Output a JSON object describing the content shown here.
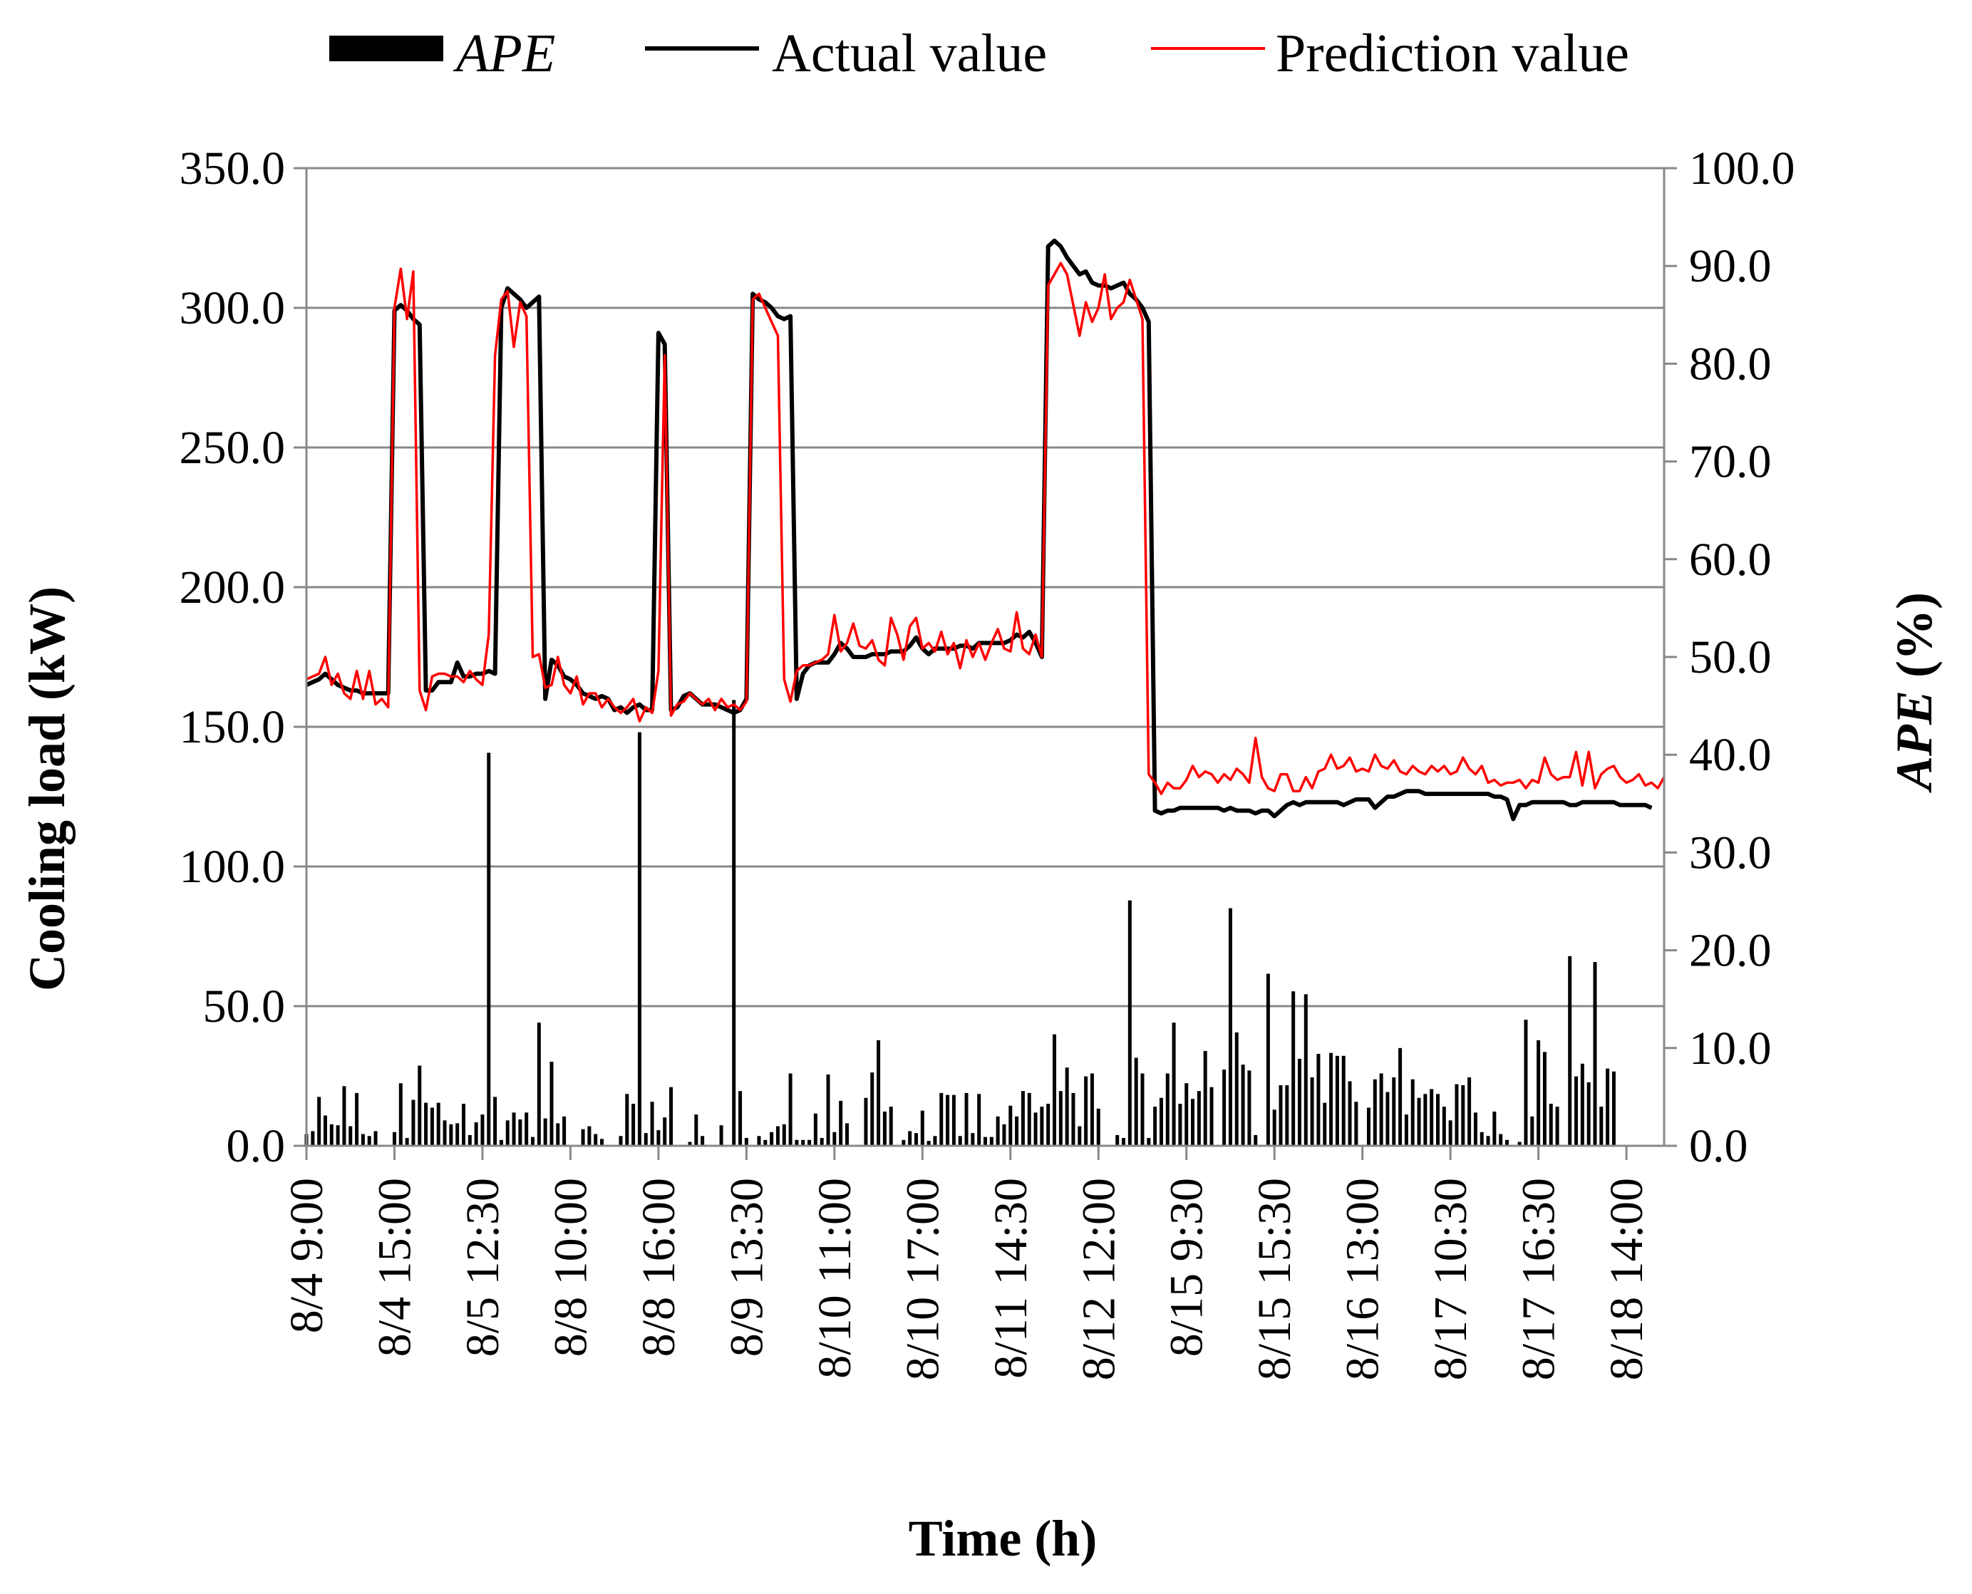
{
  "chart_data": {
    "type": "line",
    "title": "",
    "xlabel": "Time (h)",
    "ylabel_left": "Cooling load (kW)",
    "ylabel_right_italic": "APE",
    "ylabel_right_suffix": " (%)",
    "ylim_left": [
      0,
      350
    ],
    "ylim_right": [
      0,
      100
    ],
    "left_ticks": [
      "0.0",
      "50.0",
      "100.0",
      "150.0",
      "200.0",
      "250.0",
      "300.0",
      "350.0"
    ],
    "right_ticks": [
      "0.0",
      "10.0",
      "20.0",
      "30.0",
      "40.0",
      "50.0",
      "60.0",
      "70.0",
      "80.0",
      "90.0",
      "100.0"
    ],
    "grid": true,
    "n_points": 217,
    "x_tick_labels": [
      {
        "index": 0,
        "label": "8/4 9:00"
      },
      {
        "index": 14,
        "label": "8/4 15:00"
      },
      {
        "index": 28,
        "label": "8/5 12:30"
      },
      {
        "index": 42,
        "label": "8/8 10:00"
      },
      {
        "index": 56,
        "label": "8/8 16:00"
      },
      {
        "index": 70,
        "label": "8/9 13:30"
      },
      {
        "index": 84,
        "label": "8/10 11:00"
      },
      {
        "index": 98,
        "label": "8/10 17:00"
      },
      {
        "index": 112,
        "label": "8/11 14:30"
      },
      {
        "index": 126,
        "label": "8/12 12:00"
      },
      {
        "index": 140,
        "label": "8/15 9:30"
      },
      {
        "index": 154,
        "label": "8/15 15:30"
      },
      {
        "index": 168,
        "label": "8/16 13:00"
      },
      {
        "index": 182,
        "label": "8/17 10:30"
      },
      {
        "index": 196,
        "label": "8/17 16:30"
      },
      {
        "index": 210,
        "label": "8/18 14:00"
      }
    ],
    "legend": [
      {
        "name": "APE",
        "italic": true,
        "style": "bar",
        "color": "#000000"
      },
      {
        "name": "Actual value",
        "italic": false,
        "style": "line",
        "color": "#000000"
      },
      {
        "name": "Prediction value",
        "italic": false,
        "style": "line",
        "color": "#ff0000"
      }
    ],
    "legend_position": "top",
    "series": [
      {
        "name": "Actual value",
        "color": "#000000",
        "axis": "left",
        "values": [
          165,
          166,
          167,
          169,
          167,
          165,
          164,
          163,
          163,
          162,
          162,
          162,
          162,
          162,
          299,
          301,
          299,
          296,
          294,
          163,
          163,
          166,
          166,
          166,
          173,
          168,
          168,
          169,
          169,
          170,
          169,
          300,
          307,
          305,
          303,
          300,
          302,
          304,
          160,
          174,
          172,
          168,
          167,
          165,
          162,
          161,
          160,
          161,
          160,
          156,
          157,
          155,
          157,
          158,
          156,
          156,
          291,
          287,
          156,
          157,
          161,
          162,
          160,
          158,
          158,
          158,
          157,
          156,
          155,
          156,
          160,
          305,
          303,
          302,
          300,
          297,
          296,
          297,
          160,
          169,
          172,
          173,
          173,
          173,
          176,
          180,
          178,
          175,
          175,
          175,
          176,
          176,
          176,
          177,
          177,
          177,
          179,
          182,
          178,
          176,
          178,
          178,
          178,
          178,
          179,
          179,
          178,
          180,
          180,
          180,
          180,
          180,
          181,
          183,
          182,
          184,
          180,
          175,
          322,
          324,
          322,
          318,
          315,
          312,
          313,
          309,
          308,
          308,
          307,
          308,
          309,
          305,
          303,
          300,
          295,
          120,
          119,
          120,
          120,
          121,
          121,
          121,
          121,
          121,
          121,
          121,
          120,
          121,
          120,
          120,
          120,
          119,
          120,
          120,
          118,
          120,
          122,
          123,
          122,
          123,
          123,
          123,
          123,
          123,
          123,
          122,
          123,
          124,
          124,
          124,
          121,
          123,
          125,
          125,
          126,
          127,
          127,
          127,
          126,
          126,
          126,
          126,
          126,
          126,
          126,
          126,
          126,
          126,
          126,
          125,
          125,
          124,
          117,
          122,
          122,
          123,
          123,
          123,
          123,
          123,
          123,
          122,
          122,
          123,
          123,
          123,
          123,
          123,
          123,
          122,
          122,
          122,
          122,
          122,
          121
        ]
      },
      {
        "name": "Prediction value",
        "color": "#ff0000",
        "axis": "left",
        "values": [
          167,
          168,
          169,
          175,
          165,
          169,
          162,
          160,
          170,
          160,
          170,
          158,
          160,
          157,
          300,
          314,
          296,
          313,
          163,
          156,
          168,
          169,
          169,
          168,
          168,
          166,
          170,
          167,
          165,
          183,
          283,
          303,
          306,
          286,
          302,
          297,
          175,
          176,
          164,
          165,
          175,
          165,
          162,
          168,
          158,
          162,
          162,
          157,
          160,
          157,
          155,
          157,
          160,
          152,
          157,
          155,
          170,
          283,
          154,
          158,
          159,
          162,
          160,
          158,
          160,
          156,
          160,
          157,
          158,
          156,
          159,
          303,
          305,
          300,
          295,
          290,
          167,
          159,
          170,
          172,
          172,
          173,
          174,
          176,
          190,
          177,
          180,
          187,
          179,
          178,
          181,
          174,
          172,
          189,
          183,
          174,
          186,
          189,
          178,
          180,
          177,
          184,
          176,
          180,
          171,
          181,
          175,
          180,
          174,
          180,
          185,
          178,
          177,
          191,
          178,
          176,
          183,
          175,
          308,
          312,
          316,
          312,
          301,
          290,
          302,
          295,
          300,
          312,
          296,
          300,
          302,
          310,
          303,
          296,
          133,
          130,
          126,
          130,
          128,
          128,
          131,
          136,
          132,
          134,
          133,
          130,
          133,
          131,
          135,
          133,
          130,
          146,
          132,
          128,
          127,
          133,
          133,
          127,
          127,
          132,
          128,
          134,
          135,
          140,
          135,
          136,
          139,
          134,
          135,
          134,
          140,
          136,
          135,
          138,
          134,
          133,
          136,
          134,
          133,
          136,
          134,
          136,
          133,
          134,
          139,
          135,
          133,
          136,
          130,
          131,
          129,
          130,
          130,
          131,
          128,
          131,
          130,
          139,
          133,
          131,
          132,
          132,
          141,
          129,
          141,
          128,
          133,
          135,
          136,
          132,
          130,
          131,
          133,
          129,
          130,
          128,
          132
        ]
      },
      {
        "name": "APE",
        "color": "#000000",
        "axis": "right",
        "style": "bar",
        "values": [
          1.2,
          1.5,
          5.0,
          3.1,
          2.2,
          2.1,
          6.1,
          2.0,
          5.4,
          1.2,
          1.0,
          1.5,
          0,
          0,
          1.4,
          6.4,
          0.8,
          4.7,
          8.2,
          4.4,
          3.9,
          4.4,
          2.6,
          2.2,
          2.3,
          4.3,
          1.1,
          2.4,
          3.2,
          40.2,
          5.0,
          0.6,
          2.6,
          3.4,
          2.7,
          3.4,
          0.9,
          12.6,
          2.8,
          8.6,
          2.3,
          3.0,
          0,
          0,
          1.7,
          2.0,
          1.2,
          0.7,
          0,
          0,
          1.0,
          5.3,
          4.3,
          42.3,
          1.3,
          4.5,
          1.6,
          2.9,
          6.0,
          0,
          0,
          0.4,
          3.2,
          1.0,
          0,
          0,
          2.1,
          0,
          45.6,
          5.6,
          0.8,
          0,
          1.0,
          0.6,
          1.4,
          2.0,
          2.2,
          7.4,
          0.6,
          0.6,
          0.6,
          3.3,
          0.8,
          7.3,
          1.4,
          4.6,
          2.3,
          0,
          0,
          4.9,
          7.5,
          10.8,
          3.5,
          4.0,
          0,
          0.6,
          1.5,
          1.3,
          3.6,
          0.5,
          1.0,
          5.4,
          5.2,
          5.2,
          1.0,
          5.4,
          1.3,
          5.3,
          0.9,
          0.9,
          3.0,
          2.2,
          4.1,
          3.0,
          5.6,
          5.4,
          3.4,
          4.0,
          4.3,
          11.4,
          5.6,
          8.0,
          5.4,
          2.0,
          7.1,
          7.4,
          3.8,
          0,
          0,
          1.1,
          0.8,
          25.1,
          9.0,
          7.4,
          0.8,
          4.0,
          4.9,
          7.4,
          12.6,
          4.3,
          6.4,
          4.8,
          5.6,
          9.7,
          6.0,
          0,
          7.8,
          24.3,
          11.6,
          8.3,
          7.7,
          1.1,
          0,
          17.6,
          3.7,
          6.2,
          6.2,
          15.8,
          8.9,
          15.5,
          7.0,
          9.4,
          4.4,
          9.5,
          9.2,
          9.2,
          6.6,
          4.5,
          0,
          3.9,
          6.8,
          7.4,
          5.5,
          7.0,
          10.0,
          3.2,
          6.8,
          4.9,
          5.3,
          5.8,
          5.3,
          4.0,
          2.6,
          6.3,
          6.2,
          7.0,
          3.4,
          1.4,
          1.0,
          3.5,
          1.2,
          0.6,
          0,
          0.4,
          12.9,
          3.0,
          10.8,
          9.6,
          4.3,
          4.0,
          0,
          19.4,
          7.1,
          8.4,
          6.5,
          18.8,
          4.0,
          7.9,
          7.6
        ]
      }
    ]
  }
}
